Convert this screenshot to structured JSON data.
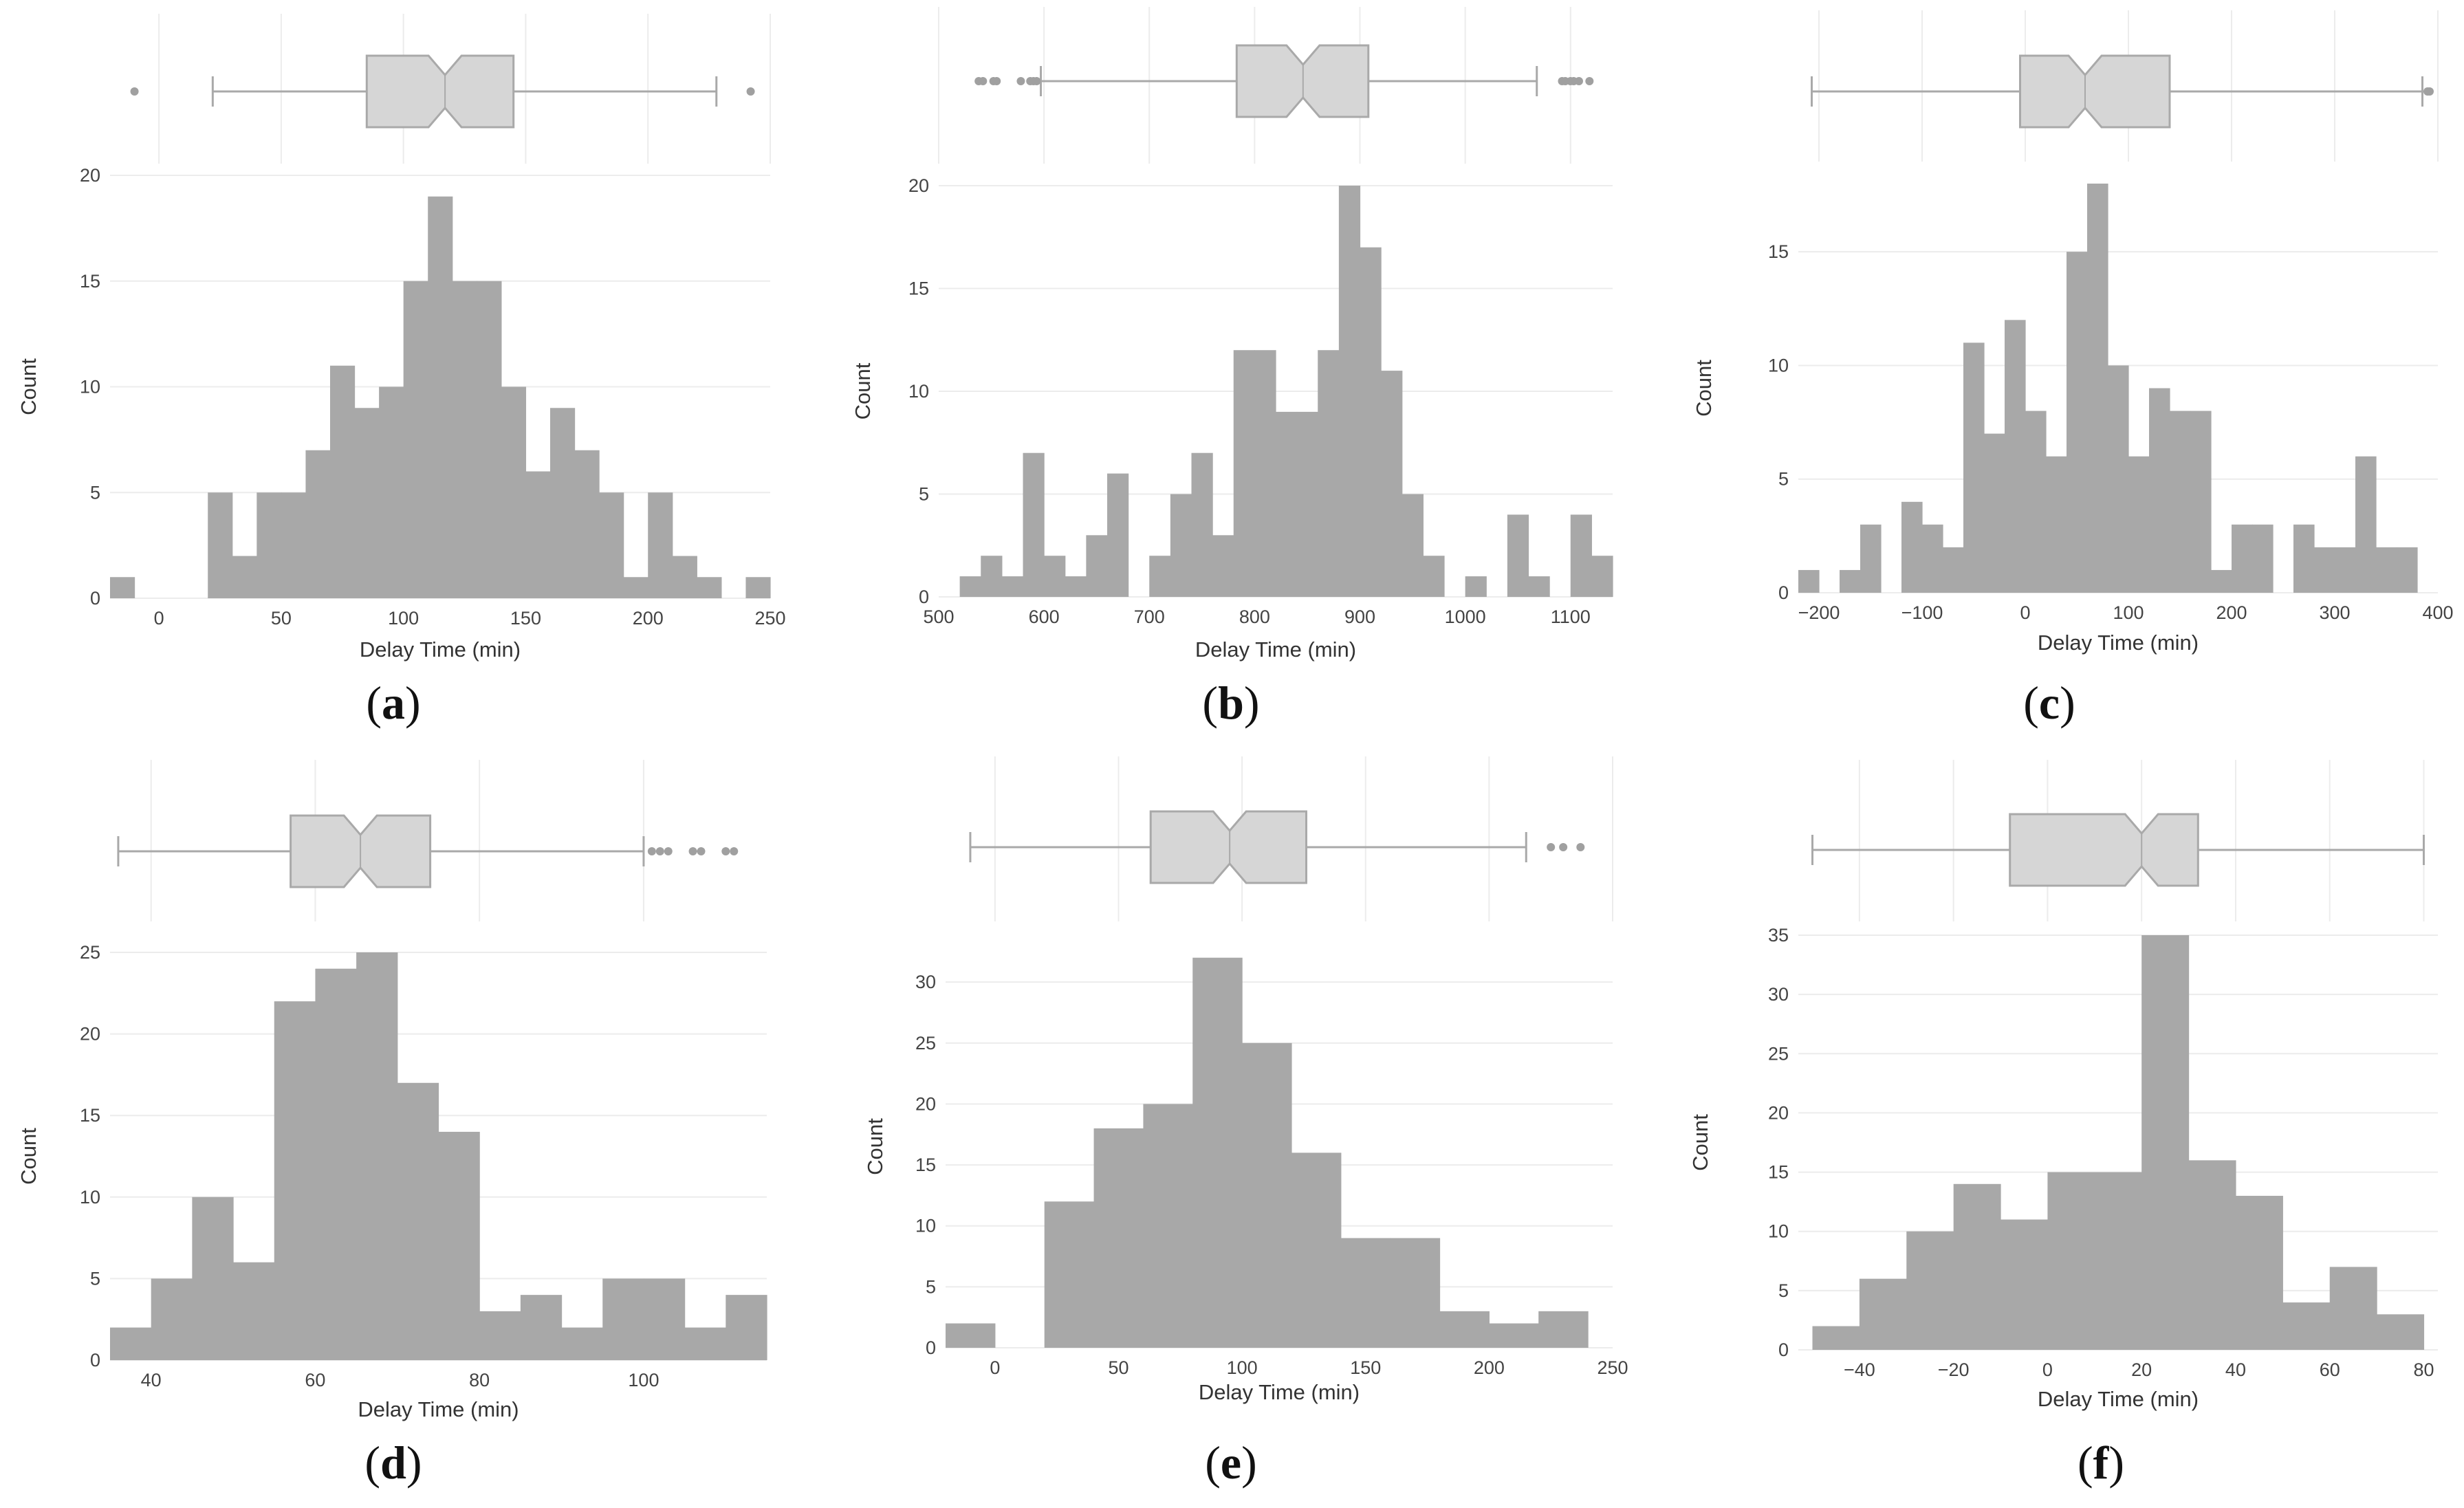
{
  "colors": {
    "bar": "#a8a8a8",
    "box_fill": "#d6d6d6",
    "box_stroke": "#a9a9a9",
    "grid": "#ececec",
    "outlier": "#a0a0a0"
  },
  "chart_data": [
    {
      "type": "bar",
      "panel": "a",
      "xlabel": "Delay Time (min)",
      "ylabel": "Count",
      "xlim": [
        -20,
        250
      ],
      "ylim": [
        0,
        20
      ],
      "xticks": [
        0,
        50,
        100,
        150,
        200,
        250
      ],
      "yticks": [
        0,
        5,
        10,
        15,
        20
      ],
      "grid": true,
      "bin_start": -20,
      "bin_width": 10,
      "counts": [
        1,
        0,
        0,
        0,
        5,
        2,
        5,
        5,
        7,
        11,
        9,
        10,
        15,
        19,
        15,
        15,
        10,
        6,
        9,
        7,
        5,
        1,
        5,
        2,
        1,
        0,
        1
      ],
      "boxplot": {
        "min": 22,
        "q1": 85,
        "median": 117,
        "q3": 145,
        "max": 228,
        "outliers": [
          -10,
          242
        ]
      }
    },
    {
      "type": "bar",
      "panel": "b",
      "xlabel": "Delay Time (min)",
      "ylabel": "Count",
      "xlim": [
        500,
        1140
      ],
      "ylim": [
        0,
        20
      ],
      "xticks": [
        500,
        600,
        700,
        800,
        900,
        1000,
        1100
      ],
      "yticks": [
        0,
        5,
        10,
        15,
        20
      ],
      "grid": true,
      "bin_start": 520,
      "bin_width": 20,
      "counts": [
        1,
        2,
        1,
        7,
        2,
        1,
        3,
        6,
        0,
        2,
        5,
        7,
        3,
        12,
        12,
        9,
        9,
        12,
        20,
        17,
        11,
        5,
        2,
        0,
        1,
        0,
        4,
        1,
        0,
        4,
        2
      ],
      "boxplot": {
        "min": 597,
        "q1": 783,
        "median": 846,
        "q3": 908,
        "max": 1068,
        "outliers": [
          538,
          542,
          552,
          555,
          578,
          587,
          590,
          593,
          1092,
          1095,
          1100,
          1103,
          1108,
          1118
        ]
      }
    },
    {
      "type": "bar",
      "panel": "c",
      "xlabel": "Delay Time (min)",
      "ylabel": "Count",
      "xlim": [
        -220,
        400
      ],
      "ylim": [
        0,
        18
      ],
      "xticks": [
        -200,
        -100,
        0,
        100,
        200,
        300,
        400
      ],
      "yticks": [
        0,
        5,
        10,
        15
      ],
      "grid": true,
      "bin_start": -220,
      "bin_width": 20,
      "counts": [
        1,
        0,
        1,
        3,
        0,
        4,
        3,
        2,
        11,
        7,
        12,
        8,
        6,
        15,
        18,
        10,
        6,
        9,
        8,
        8,
        1,
        3,
        3,
        0,
        3,
        2,
        2,
        6,
        2,
        2
      ],
      "boxplot": {
        "min": -207,
        "q1": -5,
        "median": 58,
        "q3": 140,
        "max": 385,
        "outliers": [
          390,
          392
        ]
      }
    },
    {
      "type": "bar",
      "panel": "d",
      "xlabel": "Delay Time (min)",
      "ylabel": "Count",
      "xlim": [
        35,
        115
      ],
      "ylim": [
        0,
        25
      ],
      "xticks": [
        40,
        60,
        80,
        100
      ],
      "yticks": [
        0,
        5,
        10,
        15,
        20,
        25
      ],
      "grid": true,
      "bin_start": 35,
      "bin_width": 5,
      "counts": [
        2,
        5,
        10,
        6,
        22,
        24,
        25,
        17,
        14,
        3,
        4,
        2,
        5,
        5,
        2,
        4
      ],
      "boxplot": {
        "min": 36,
        "q1": 57,
        "median": 65.5,
        "q3": 74,
        "max": 100,
        "outliers": [
          101,
          102,
          103,
          106,
          107,
          110,
          111
        ]
      }
    },
    {
      "type": "bar",
      "panel": "e",
      "xlabel": "Delay Time (min)",
      "ylabel": "Count",
      "xlim": [
        -20,
        250
      ],
      "ylim": [
        0,
        33
      ],
      "xticks": [
        0,
        50,
        100,
        150,
        200,
        250
      ],
      "yticks": [
        0,
        5,
        10,
        15,
        20,
        25,
        30
      ],
      "grid": true,
      "bin_start": -20,
      "bin_width": 20,
      "counts": [
        2,
        0,
        12,
        18,
        20,
        32,
        25,
        16,
        9,
        9,
        3,
        2,
        3
      ],
      "boxplot": {
        "min": -10,
        "q1": 63,
        "median": 95,
        "q3": 126,
        "max": 215,
        "outliers": [
          225,
          230,
          237
        ]
      }
    },
    {
      "type": "bar",
      "panel": "f",
      "xlabel": "Delay Time (min)",
      "ylabel": "Count",
      "xlim": [
        -53,
        83
      ],
      "ylim": [
        0,
        35
      ],
      "xticks": [
        -40,
        -20,
        0,
        20,
        40,
        60,
        80
      ],
      "yticks": [
        0,
        5,
        10,
        15,
        20,
        25,
        30,
        35
      ],
      "grid": true,
      "bin_start": -50,
      "bin_width": 10,
      "counts": [
        2,
        6,
        10,
        14,
        11,
        15,
        15,
        35,
        16,
        13,
        4,
        7,
        3
      ],
      "boxplot": {
        "min": -50,
        "q1": -8,
        "median": 20,
        "q3": 32,
        "max": 80,
        "outliers": []
      }
    }
  ],
  "panel_labels": [
    "(a)",
    "(b)",
    "(c)",
    "(d)",
    "(e)",
    "(f)"
  ]
}
